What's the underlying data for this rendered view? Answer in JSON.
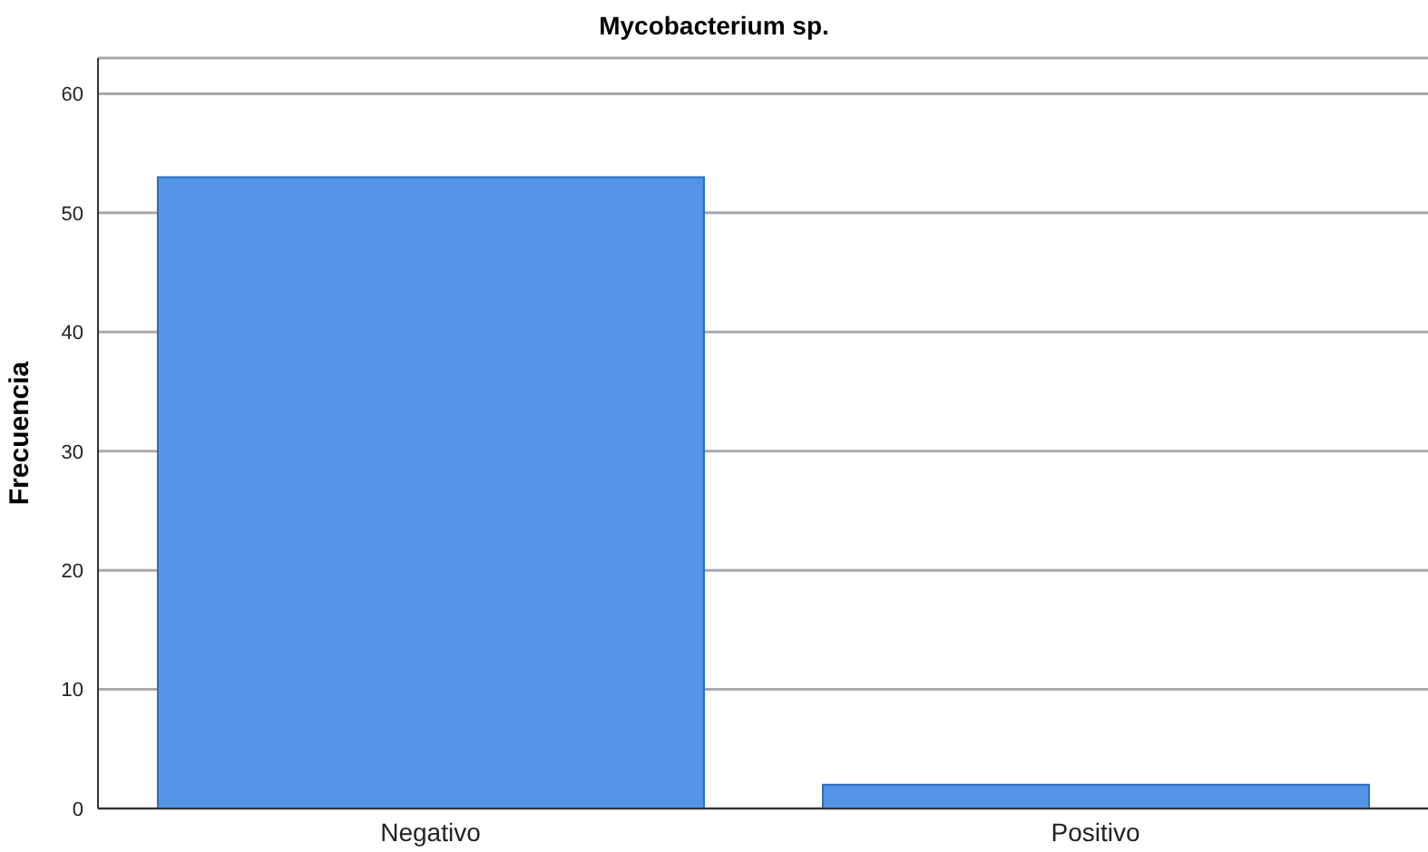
{
  "chart_data": {
    "type": "bar",
    "title": "Mycobacterium sp.",
    "ylabel": "Frecuencia",
    "categories": [
      "Negativo",
      "Positivo"
    ],
    "values": [
      53,
      2
    ],
    "color": "#5595e5",
    "ylim": [
      0,
      63
    ],
    "yticks": [
      0,
      10,
      20,
      30,
      40,
      50,
      60
    ],
    "grid": "y"
  }
}
